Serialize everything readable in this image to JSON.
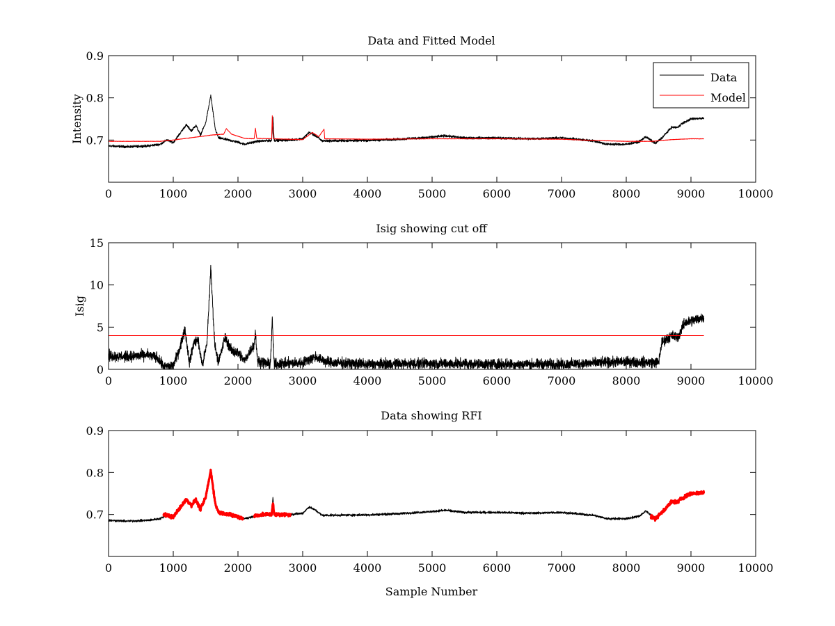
{
  "chart_data": [
    {
      "type": "line",
      "title": "Data and Fitted Model",
      "xlabel": "",
      "ylabel": "Intensity",
      "xlim": [
        0,
        10000
      ],
      "ylim": [
        0.6,
        0.9
      ],
      "xticks": [
        "0",
        "1000",
        "2000",
        "3000",
        "4000",
        "5000",
        "6000",
        "7000",
        "8000",
        "9000",
        "10000"
      ],
      "yticks": [
        "0.7",
        "0.8",
        "0.9"
      ],
      "legend": {
        "placement": "top-right",
        "entries": [
          "Data",
          "Model"
        ]
      },
      "series": [
        {
          "name": "Data",
          "color": "#000000",
          "noise": 0.004,
          "points": [
            [
              0,
              0.686
            ],
            [
              300,
              0.684
            ],
            [
              600,
              0.686
            ],
            [
              800,
              0.69
            ],
            [
              900,
              0.7
            ],
            [
              1000,
              0.694
            ],
            [
              1100,
              0.715
            ],
            [
              1200,
              0.736
            ],
            [
              1280,
              0.722
            ],
            [
              1350,
              0.735
            ],
            [
              1420,
              0.712
            ],
            [
              1500,
              0.74
            ],
            [
              1580,
              0.805
            ],
            [
              1650,
              0.725
            ],
            [
              1700,
              0.705
            ],
            [
              1800,
              0.702
            ],
            [
              2000,
              0.695
            ],
            [
              2100,
              0.69
            ],
            [
              2300,
              0.697
            ],
            [
              2520,
              0.699
            ],
            [
              2540,
              0.755
            ],
            [
              2560,
              0.699
            ],
            [
              2800,
              0.7
            ],
            [
              3000,
              0.703
            ],
            [
              3100,
              0.718
            ],
            [
              3200,
              0.71
            ],
            [
              3300,
              0.698
            ],
            [
              4000,
              0.699
            ],
            [
              4500,
              0.702
            ],
            [
              5000,
              0.707
            ],
            [
              5200,
              0.71
            ],
            [
              5500,
              0.705
            ],
            [
              6000,
              0.705
            ],
            [
              6500,
              0.703
            ],
            [
              7000,
              0.705
            ],
            [
              7500,
              0.698
            ],
            [
              7700,
              0.69
            ],
            [
              8000,
              0.69
            ],
            [
              8200,
              0.696
            ],
            [
              8300,
              0.708
            ],
            [
              8450,
              0.692
            ],
            [
              8550,
              0.705
            ],
            [
              8700,
              0.73
            ],
            [
              8800,
              0.73
            ],
            [
              8850,
              0.738
            ],
            [
              9000,
              0.75
            ],
            [
              9200,
              0.752
            ]
          ]
        },
        {
          "name": "Model",
          "color": "#ff0000",
          "noise": 0.0007,
          "points": [
            [
              0,
              0.697
            ],
            [
              800,
              0.697
            ],
            [
              1000,
              0.7
            ],
            [
              1300,
              0.706
            ],
            [
              1600,
              0.712
            ],
            [
              1780,
              0.714
            ],
            [
              1820,
              0.727
            ],
            [
              1900,
              0.714
            ],
            [
              2100,
              0.704
            ],
            [
              2250,
              0.703
            ],
            [
              2270,
              0.728
            ],
            [
              2290,
              0.704
            ],
            [
              2520,
              0.703
            ],
            [
              2530,
              0.758
            ],
            [
              2545,
              0.703
            ],
            [
              3000,
              0.701
            ],
            [
              3150,
              0.718
            ],
            [
              3250,
              0.708
            ],
            [
              3330,
              0.726
            ],
            [
              3340,
              0.703
            ],
            [
              4000,
              0.702
            ],
            [
              5000,
              0.703
            ],
            [
              6000,
              0.703
            ],
            [
              7000,
              0.702
            ],
            [
              7500,
              0.699
            ],
            [
              8000,
              0.697
            ],
            [
              8400,
              0.697
            ],
            [
              8700,
              0.701
            ],
            [
              9000,
              0.703
            ],
            [
              9200,
              0.703
            ]
          ]
        }
      ]
    },
    {
      "type": "line",
      "title": "Isig showing cut off",
      "xlabel": "",
      "ylabel": "Isig",
      "xlim": [
        0,
        10000
      ],
      "ylim": [
        0,
        15
      ],
      "xticks": [
        "0",
        "1000",
        "2000",
        "3000",
        "4000",
        "5000",
        "6000",
        "7000",
        "8000",
        "9000",
        "10000"
      ],
      "yticks": [
        "0",
        "5",
        "10",
        "15"
      ],
      "series": [
        {
          "name": "Isig",
          "color": "#000000",
          "noise": 0.9,
          "points": [
            [
              0,
              1.6
            ],
            [
              300,
              1.5
            ],
            [
              600,
              1.7
            ],
            [
              750,
              1.4
            ],
            [
              850,
              0.3
            ],
            [
              1000,
              0.4
            ],
            [
              1100,
              2.5
            ],
            [
              1180,
              4.8
            ],
            [
              1250,
              0.8
            ],
            [
              1320,
              3.2
            ],
            [
              1380,
              3.5
            ],
            [
              1450,
              0.5
            ],
            [
              1520,
              3.0
            ],
            [
              1580,
              12.0
            ],
            [
              1640,
              3.0
            ],
            [
              1700,
              0.8
            ],
            [
              1800,
              3.8
            ],
            [
              1900,
              2.2
            ],
            [
              2000,
              2.0
            ],
            [
              2100,
              1.0
            ],
            [
              2250,
              3.0
            ],
            [
              2270,
              4.5
            ],
            [
              2300,
              1.0
            ],
            [
              2500,
              0.6
            ],
            [
              2530,
              5.8
            ],
            [
              2560,
              0.6
            ],
            [
              3000,
              0.8
            ],
            [
              3200,
              1.5
            ],
            [
              3400,
              0.8
            ],
            [
              4000,
              0.6
            ],
            [
              5000,
              0.7
            ],
            [
              6000,
              0.6
            ],
            [
              7000,
              0.6
            ],
            [
              8000,
              0.9
            ],
            [
              8500,
              0.8
            ],
            [
              8550,
              3.2
            ],
            [
              8700,
              4.0
            ],
            [
              8800,
              3.8
            ],
            [
              8900,
              5.5
            ],
            [
              9200,
              6.2
            ]
          ]
        },
        {
          "name": "Cut off",
          "color": "#ff0000",
          "noise": 0,
          "points": [
            [
              0,
              4
            ],
            [
              9200,
              4
            ]
          ]
        }
      ]
    },
    {
      "type": "line",
      "title": "Data showing RFI",
      "xlabel": "Sample Number",
      "ylabel": "",
      "xlim": [
        0,
        10000
      ],
      "ylim": [
        0.6,
        0.9
      ],
      "xticks": [
        "0",
        "1000",
        "2000",
        "3000",
        "4000",
        "5000",
        "6000",
        "7000",
        "8000",
        "9000",
        "10000"
      ],
      "yticks": [
        "0.7",
        "0.8",
        "0.9"
      ],
      "series": [
        {
          "name": "Data",
          "color": "#000000",
          "noise": 0.004,
          "points": [
            [
              0,
              0.686
            ],
            [
              300,
              0.684
            ],
            [
              600,
              0.686
            ],
            [
              800,
              0.69
            ],
            [
              900,
              0.7
            ],
            [
              1000,
              0.694
            ],
            [
              1100,
              0.715
            ],
            [
              1200,
              0.736
            ],
            [
              1280,
              0.722
            ],
            [
              1350,
              0.735
            ],
            [
              1420,
              0.712
            ],
            [
              1500,
              0.74
            ],
            [
              1580,
              0.805
            ],
            [
              1650,
              0.725
            ],
            [
              1700,
              0.705
            ],
            [
              1800,
              0.702
            ],
            [
              2000,
              0.695
            ],
            [
              2100,
              0.69
            ],
            [
              2300,
              0.697
            ],
            [
              2520,
              0.699
            ],
            [
              2540,
              0.74
            ],
            [
              2560,
              0.699
            ],
            [
              2800,
              0.7
            ],
            [
              3000,
              0.703
            ],
            [
              3100,
              0.718
            ],
            [
              3200,
              0.71
            ],
            [
              3300,
              0.698
            ],
            [
              4000,
              0.699
            ],
            [
              4500,
              0.702
            ],
            [
              5000,
              0.707
            ],
            [
              5200,
              0.71
            ],
            [
              5500,
              0.705
            ],
            [
              6000,
              0.705
            ],
            [
              6500,
              0.703
            ],
            [
              7000,
              0.705
            ],
            [
              7500,
              0.698
            ],
            [
              7700,
              0.69
            ],
            [
              8000,
              0.69
            ],
            [
              8200,
              0.696
            ],
            [
              8300,
              0.708
            ],
            [
              8450,
              0.692
            ],
            [
              8550,
              0.705
            ],
            [
              8700,
              0.73
            ],
            [
              8800,
              0.73
            ],
            [
              8850,
              0.738
            ],
            [
              9000,
              0.75
            ],
            [
              9200,
              0.752
            ]
          ]
        },
        {
          "name": "RFI flagged",
          "color": "#ff0000",
          "noise": 0.006,
          "thick": true,
          "segments": [
            [
              [
                850,
                0.7
              ],
              [
                1000,
                0.694
              ],
              [
                1100,
                0.715
              ],
              [
                1200,
                0.736
              ],
              [
                1280,
                0.722
              ],
              [
                1350,
                0.735
              ],
              [
                1420,
                0.712
              ],
              [
                1500,
                0.74
              ],
              [
                1580,
                0.805
              ],
              [
                1650,
                0.725
              ],
              [
                1700,
                0.705
              ],
              [
                1800,
                0.702
              ],
              [
                2000,
                0.695
              ],
              [
                2080,
                0.69
              ]
            ],
            [
              [
                2250,
                0.697
              ],
              [
                2400,
                0.7
              ],
              [
                2520,
                0.7
              ],
              [
                2540,
                0.73
              ],
              [
                2560,
                0.7
              ],
              [
                2820,
                0.7
              ]
            ],
            [
              [
                8380,
                0.695
              ],
              [
                8450,
                0.69
              ],
              [
                8550,
                0.705
              ],
              [
                8700,
                0.73
              ],
              [
                8800,
                0.73
              ],
              [
                8850,
                0.738
              ],
              [
                9000,
                0.75
              ],
              [
                9200,
                0.752
              ]
            ]
          ]
        }
      ]
    }
  ]
}
